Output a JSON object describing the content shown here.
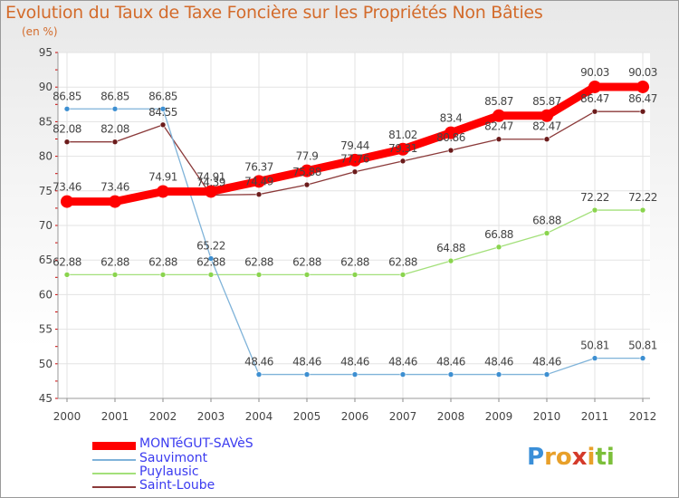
{
  "chart_data": {
    "type": "line",
    "title": "Evolution du Taux de Taxe Foncière sur les Propriétés Non Bâties",
    "unit_label": "(en %)",
    "xlabel": "",
    "ylabel": "",
    "ylim": [
      45,
      95
    ],
    "yticks": [
      "45",
      "50",
      "55",
      "60",
      "65",
      "70",
      "75",
      "80",
      "85",
      "90",
      "95"
    ],
    "categories": [
      "2000",
      "2001",
      "2002",
      "2003",
      "2004",
      "2005",
      "2006",
      "2007",
      "2008",
      "2009",
      "2010",
      "2011",
      "2012"
    ],
    "grid": true,
    "legend_position": "bottom-left",
    "series": [
      {
        "name": "MONTéGUT-SAVèS",
        "color": "#ff0000",
        "point_color": "#ff0000",
        "values": [
          73.46,
          73.46,
          74.91,
          74.91,
          76.37,
          77.9,
          79.44,
          81.02,
          83.4,
          85.87,
          85.87,
          90.03,
          90.03
        ],
        "labels": [
          "73.46",
          "73.46",
          "74.91",
          "74.91",
          "76.37",
          "77.9",
          "79.44",
          "81.02",
          "83.4",
          "85.87",
          "85.87",
          "90.03",
          "90.03"
        ]
      },
      {
        "name": "Sauvimont",
        "color": "#7fb3d9",
        "point_color": "#3d8fd1",
        "values": [
          86.85,
          86.85,
          86.85,
          65.22,
          48.46,
          48.46,
          48.46,
          48.46,
          48.46,
          48.46,
          48.46,
          50.81,
          50.81
        ],
        "labels": [
          "86.85",
          "86.85",
          "86.85",
          "65.22",
          "48.46",
          "48.46",
          "48.46",
          "48.46",
          "48.46",
          "48.46",
          "48.46",
          "50.81",
          "50.81"
        ]
      },
      {
        "name": "Puylausic",
        "color": "#a3e07a",
        "point_color": "#8ad44e",
        "values": [
          62.88,
          62.88,
          62.88,
          62.88,
          62.88,
          62.88,
          62.88,
          62.88,
          64.88,
          66.88,
          68.88,
          72.22,
          72.22
        ],
        "labels": [
          "62.88",
          "62.88",
          "62.88",
          "62.88",
          "62.88",
          "62.88",
          "62.88",
          "62.88",
          "64.88",
          "66.88",
          "68.88",
          "72.22",
          "72.22"
        ]
      },
      {
        "name": "Saint-Loube",
        "color": "#8b3a3a",
        "point_color": "#6b1b1b",
        "values": [
          82.08,
          82.08,
          84.55,
          74.39,
          74.49,
          75.88,
          77.76,
          79.31,
          80.86,
          82.47,
          82.47,
          86.47,
          86.47
        ],
        "labels": [
          "82.08",
          "82.08",
          "84.55",
          "74.39",
          "74.49",
          "75.88",
          "77.76",
          "79.31",
          "80.86",
          "82.47",
          "82.47",
          "86.47",
          "86.47"
        ]
      }
    ]
  },
  "branding": {
    "logo_letters": [
      "P",
      "r",
      "o",
      "x",
      "i",
      "t",
      "i"
    ],
    "logo_colors": [
      "#3a8fd8",
      "#e8a02a",
      "#e8a02a",
      "#d43a2a",
      "#e8a02a",
      "#7cbf3a",
      "#7cbf3a"
    ]
  }
}
